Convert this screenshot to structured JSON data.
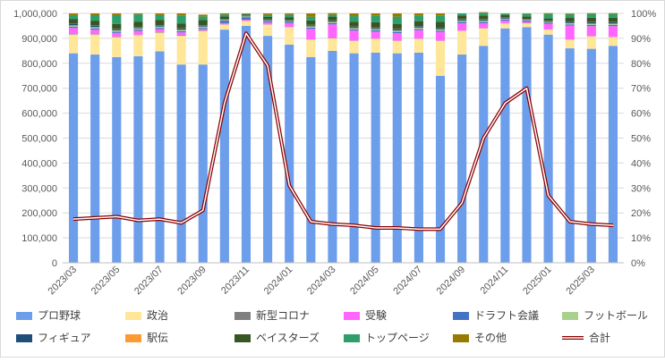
{
  "chart_data": {
    "type": "bar",
    "stacked": true,
    "categories": [
      "2023/03",
      "2023/04",
      "2023/05",
      "2023/06",
      "2023/07",
      "2023/08",
      "2023/09",
      "2023/10",
      "2023/11",
      "2023/12",
      "2024/01",
      "2024/02",
      "2024/03",
      "2024/04",
      "2024/05",
      "2024/06",
      "2024/07",
      "2024/08",
      "2024/09",
      "2024/10",
      "2024/11",
      "2024/12",
      "2025/01",
      "2025/02",
      "2025/03",
      "2025/04"
    ],
    "x_tick_labels": [
      "2023/03",
      "2023/05",
      "2023/07",
      "2023/09",
      "2023/11",
      "2024/01",
      "2024/03",
      "2024/05",
      "2024/07",
      "2024/09",
      "2024/11",
      "2025/01",
      "2025/03"
    ],
    "y_left": {
      "min": 0,
      "max": 1000000,
      "step": 100000,
      "tick_labels": [
        "0",
        "100,000",
        "200,000",
        "300,000",
        "400,000",
        "500,000",
        "600,000",
        "700,000",
        "800,000",
        "900,000",
        "1,000,000"
      ]
    },
    "y_right": {
      "min": 0,
      "max": 100,
      "step": 10,
      "tick_labels": [
        "0%",
        "10%",
        "20%",
        "30%",
        "40%",
        "50%",
        "60%",
        "70%",
        "80%",
        "90%",
        "100%"
      ]
    },
    "grid": true,
    "legend_position": "bottom",
    "series": [
      {
        "name": "プロ野球",
        "color": "#6d9eeb",
        "values": [
          840000,
          835000,
          825000,
          828000,
          848000,
          795000,
          795000,
          935000,
          950000,
          910000,
          875000,
          825000,
          850000,
          840000,
          843000,
          840000,
          843000,
          750000,
          835000,
          870000,
          940000,
          945000,
          915000,
          860000,
          858000,
          870000
        ]
      },
      {
        "name": "政治",
        "color": "#ffe699",
        "values": [
          75000,
          80000,
          80000,
          85000,
          75000,
          115000,
          135000,
          20000,
          20000,
          45000,
          70000,
          70000,
          50000,
          50000,
          55000,
          50000,
          55000,
          140000,
          95000,
          70000,
          20000,
          15000,
          20000,
          35000,
          50000,
          35000
        ]
      },
      {
        "name": "新型コロナ",
        "color": "#808080",
        "values": [
          2000,
          2000,
          2000,
          2000,
          2000,
          2000,
          2000,
          1000,
          1000,
          1000,
          1000,
          1000,
          1000,
          1000,
          1000,
          1000,
          1000,
          1000,
          1000,
          1000,
          1000,
          1000,
          1000,
          1000,
          1000,
          1000
        ]
      },
      {
        "name": "受験",
        "color": "#ff66ff",
        "values": [
          25000,
          18000,
          15000,
          15000,
          12000,
          12000,
          5000,
          5000,
          4000,
          8000,
          15000,
          42000,
          55000,
          40000,
          28000,
          30000,
          34000,
          35000,
          30000,
          20000,
          10000,
          5000,
          22000,
          55000,
          40000,
          43000
        ]
      },
      {
        "name": "ドラフト会議",
        "color": "#4472c4",
        "values": [
          5000,
          5000,
          5000,
          5000,
          5000,
          5000,
          5000,
          10000,
          10000,
          5000,
          5000,
          5000,
          5000,
          5000,
          5000,
          5000,
          5000,
          5000,
          5000,
          5000,
          5000,
          5000,
          5000,
          5000,
          5000,
          5000
        ]
      },
      {
        "name": "フットボール",
        "color": "#a9d18e",
        "values": [
          5000,
          5000,
          5000,
          5000,
          5000,
          5000,
          5000,
          3000,
          3000,
          3000,
          3000,
          5000,
          5000,
          5000,
          5000,
          5000,
          5000,
          5000,
          5000,
          5000,
          3000,
          3000,
          3000,
          5000,
          5000,
          5000
        ]
      },
      {
        "name": "フィギュア",
        "color": "#1f4e79",
        "values": [
          5000,
          5000,
          5000,
          5000,
          5000,
          5000,
          5000,
          3000,
          2000,
          3000,
          3000,
          5000,
          5000,
          5000,
          5000,
          5000,
          5000,
          5000,
          5000,
          5000,
          3000,
          3000,
          3000,
          5000,
          5000,
          5000
        ]
      },
      {
        "name": "駅伝",
        "color": "#ff9933",
        "values": [
          1000,
          1000,
          1000,
          1000,
          1000,
          1000,
          1000,
          1000,
          1000,
          1000,
          1000,
          1000,
          1000,
          1000,
          1000,
          1000,
          1000,
          1000,
          1000,
          1000,
          1000,
          1000,
          1000,
          1000,
          1000,
          1000
        ]
      },
      {
        "name": "ベイスターズ",
        "color": "#375623",
        "values": [
          20000,
          20000,
          20000,
          20000,
          20000,
          20000,
          20000,
          10000,
          5000,
          10000,
          12000,
          18000,
          15000,
          20000,
          22000,
          20000,
          20000,
          25000,
          15000,
          15000,
          10000,
          10000,
          10000,
          15000,
          18000,
          18000
        ]
      },
      {
        "name": "トップページ",
        "color": "#2e9e6b",
        "values": [
          15000,
          20000,
          35000,
          30000,
          20000,
          32000,
          15000,
          8000,
          3000,
          8000,
          10000,
          15000,
          8000,
          22000,
          25000,
          30000,
          23000,
          23000,
          8000,
          10000,
          5000,
          10000,
          18000,
          15000,
          15000,
          15000
        ]
      },
      {
        "name": "その他",
        "color": "#997a00",
        "values": [
          7000,
          9000,
          7000,
          4000,
          7000,
          8000,
          7000,
          4000,
          1000,
          6000,
          5000,
          13000,
          6000,
          11000,
          10000,
          13000,
          8000,
          10000,
          0,
          3000,
          2000,
          2000,
          3000,
          3000,
          3000,
          3000
        ]
      }
    ],
    "line_series": {
      "name": "合計",
      "axis": "right",
      "unit": "%",
      "values": [
        17.5,
        18,
        18.5,
        17,
        17.5,
        16,
        21,
        64,
        92,
        79,
        31,
        16.5,
        15.5,
        15,
        14,
        14,
        13.5,
        13.5,
        24,
        50,
        64,
        70,
        27,
        16.5,
        15.5,
        15
      ]
    }
  }
}
